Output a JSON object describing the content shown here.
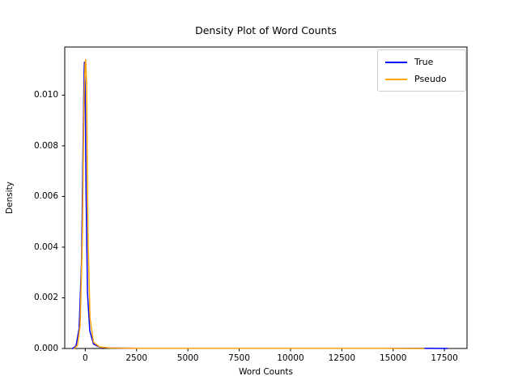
{
  "chart_data": {
    "type": "line",
    "title": "Density Plot of Word Counts",
    "xlabel": "Word Counts",
    "ylabel": "Density",
    "xticks": [
      0,
      2500,
      5000,
      7500,
      10000,
      12500,
      15000,
      17500
    ],
    "xtick_labels": [
      "0",
      "2500",
      "5000",
      "7500",
      "10000",
      "12500",
      "15000",
      "17500"
    ],
    "yticks": [
      0,
      0.002,
      0.004,
      0.006,
      0.008,
      0.01
    ],
    "ytick_labels": [
      "0.000",
      "0.002",
      "0.004",
      "0.006",
      "0.008",
      "0.010"
    ],
    "xlim": [
      -1000,
      18600
    ],
    "ylim": [
      0,
      0.0119
    ],
    "grid": false,
    "legend_position": "upper right",
    "legend": [
      {
        "label": "True",
        "color": "#0000ff"
      },
      {
        "label": "Pseudo",
        "color": "#ffa500"
      }
    ],
    "series": [
      {
        "name": "True",
        "color": "#0000ff",
        "x": [
          -620,
          -450,
          -300,
          -180,
          -100,
          -55,
          -40,
          -10,
          40,
          110,
          220,
          400,
          700,
          1200,
          2500,
          5000,
          9000,
          13000,
          16000,
          17000,
          17650
        ],
        "y": [
          0,
          0.0001,
          0.0008,
          0.0035,
          0.0085,
          0.011,
          0.0113,
          0.0105,
          0.006,
          0.0022,
          0.0007,
          0.00018,
          5e-05,
          2e-05,
          1e-05,
          6e-06,
          5e-06,
          5e-06,
          6e-06,
          4e-06,
          0
        ]
      },
      {
        "name": "Pseudo",
        "color": "#ffa500",
        "x": [
          -540,
          -380,
          -250,
          -140,
          -70,
          -10,
          20,
          60,
          130,
          230,
          400,
          700,
          1200,
          2500,
          5000,
          9000,
          12000,
          14500,
          16500
        ],
        "y": [
          0,
          0.00012,
          0.0009,
          0.0045,
          0.0095,
          0.0112,
          0.0114,
          0.0105,
          0.0045,
          0.0012,
          0.00025,
          6e-05,
          2e-05,
          1e-05,
          6e-06,
          5e-06,
          5e-06,
          6e-06,
          0
        ]
      }
    ]
  }
}
